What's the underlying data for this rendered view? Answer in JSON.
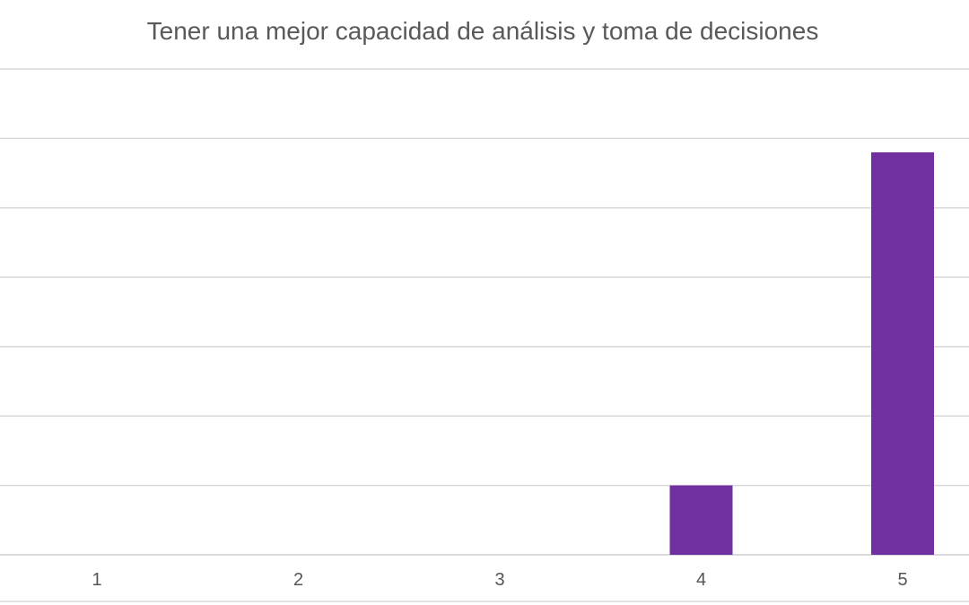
{
  "chart_data": {
    "type": "bar",
    "title": "Tener una mejor capacidad de análisis y toma de decisiones",
    "xlabel": "",
    "ylabel": "",
    "categories": [
      "1",
      "2",
      "3",
      "4",
      "5"
    ],
    "values": [
      0,
      0,
      0,
      1,
      5.8
    ],
    "ylim": [
      0,
      7
    ],
    "grid": true,
    "legend": "none",
    "bar_color": "#7030a0"
  }
}
